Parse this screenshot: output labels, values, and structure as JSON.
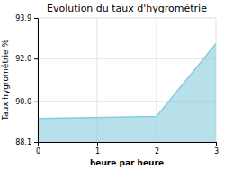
{
  "chart_data": {
    "type": "area",
    "title": "Evolution du taux d'hygrométrie",
    "xlabel": "heure par heure",
    "ylabel": "Taux hygrométrie %",
    "x": [
      0,
      2,
      3
    ],
    "values": [
      89.2,
      89.3,
      92.7
    ],
    "color": "#88ccdd",
    "xlim": [
      0,
      3
    ],
    "xticks": [
      0,
      1,
      2,
      3
    ],
    "ylim": [
      88.1,
      93.9
    ],
    "yticks": [
      88.1,
      {
        "value": 90,
        "label": "90.0"
      },
      {
        "value": 92,
        "label": "92.0"
      },
      93.9
    ],
    "grid": true
  }
}
